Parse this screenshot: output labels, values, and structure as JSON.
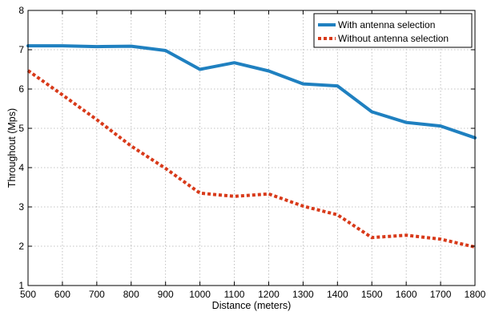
{
  "chart_data": {
    "type": "line",
    "title": "",
    "xlabel": "Distance (meters)",
    "ylabel": "Throughout (Mps)",
    "xlim": [
      500,
      1800
    ],
    "ylim": [
      1,
      8
    ],
    "xticks": [
      500,
      600,
      700,
      800,
      900,
      1000,
      1100,
      1200,
      1300,
      1400,
      1500,
      1600,
      1700,
      1800
    ],
    "yticks": [
      1,
      2,
      3,
      4,
      5,
      6,
      7,
      8
    ],
    "grid": true,
    "legend_position": "top-right",
    "x": [
      500,
      600,
      700,
      800,
      900,
      1000,
      1100,
      1200,
      1300,
      1400,
      1500,
      1600,
      1700,
      1800
    ],
    "series": [
      {
        "name": "With antenna selection",
        "color": "#1f80c0",
        "style": "solid",
        "values": [
          7.1,
          7.1,
          7.08,
          7.09,
          6.98,
          6.5,
          6.67,
          6.46,
          6.13,
          6.08,
          5.42,
          5.15,
          5.06,
          4.76
        ]
      },
      {
        "name": "Without antenna selection",
        "color": "#d83a1a",
        "style": "dotted",
        "values": [
          6.47,
          5.85,
          5.22,
          4.55,
          3.98,
          3.35,
          3.27,
          3.33,
          3.02,
          2.8,
          2.22,
          2.28,
          2.18,
          1.98
        ]
      }
    ]
  }
}
